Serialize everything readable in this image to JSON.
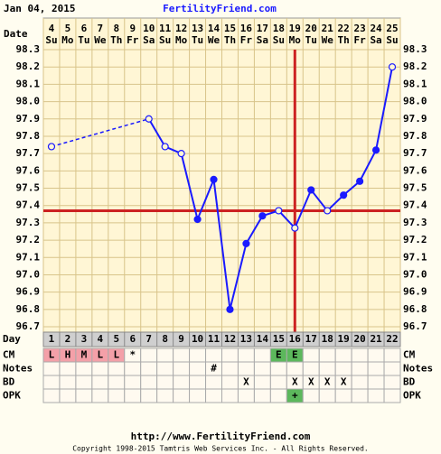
{
  "header": {
    "date": "Jan 04, 2015",
    "site": "FertilityFriend.com"
  },
  "chart_data": {
    "type": "line",
    "date_label": "Date",
    "dates": [
      "4",
      "5",
      "6",
      "7",
      "8",
      "9",
      "10",
      "11",
      "12",
      "13",
      "14",
      "15",
      "16",
      "17",
      "18",
      "19",
      "20",
      "21",
      "22",
      "23",
      "24",
      "25"
    ],
    "weekdays": [
      "Su",
      "Mo",
      "Tu",
      "We",
      "Th",
      "Fr",
      "Sa",
      "Su",
      "Mo",
      "Tu",
      "We",
      "Th",
      "Fr",
      "Sa",
      "Su",
      "Mo",
      "Tu",
      "We",
      "Th",
      "Fr",
      "Sa",
      "Su"
    ],
    "day_label": "Day",
    "categories": [
      "1",
      "2",
      "3",
      "4",
      "5",
      "6",
      "7",
      "8",
      "9",
      "10",
      "11",
      "12",
      "13",
      "14",
      "15",
      "16",
      "17",
      "18",
      "19",
      "20",
      "21",
      "22"
    ],
    "values": [
      97.74,
      null,
      null,
      null,
      null,
      null,
      97.9,
      97.74,
      97.7,
      97.32,
      97.55,
      96.8,
      97.18,
      97.34,
      97.37,
      97.27,
      97.49,
      97.37,
      97.46,
      97.54,
      97.72,
      98.2
    ],
    "marker_open": [
      true,
      false,
      false,
      false,
      false,
      false,
      true,
      true,
      true,
      false,
      false,
      false,
      false,
      false,
      true,
      true,
      false,
      true,
      false,
      false,
      false,
      true
    ],
    "color": "#1a1aff",
    "ylim": [
      96.7,
      98.3
    ],
    "yticks": [
      96.7,
      96.8,
      96.9,
      {
        "value": 97.0,
        "label": "97.0"
      },
      97.1,
      97.2,
      97.3,
      97.4,
      97.5,
      97.6,
      97.7,
      97.8,
      97.9,
      {
        "value": 98.0,
        "label": "98.0"
      },
      98.1,
      98.2,
      98.3
    ],
    "grid": true,
    "coverline": 97.37,
    "ovulation_day": 16,
    "marker_color": "#cc2222",
    "rows": [
      {
        "label": "CM",
        "cells": [
          "L",
          "H",
          "M",
          "L",
          "L",
          "*",
          null,
          null,
          null,
          null,
          null,
          null,
          null,
          null,
          "E",
          "E",
          null,
          null,
          null,
          null,
          null,
          null
        ],
        "colors": [
          "#f4a0a8",
          "#f4a0a8",
          "#f4a0a8",
          "#f4a0a8",
          "#f4a0a8",
          null,
          null,
          null,
          null,
          null,
          null,
          null,
          null,
          null,
          "#5cb85c",
          "#5cb85c",
          null,
          null,
          null,
          null,
          null,
          null
        ]
      },
      {
        "label": "Notes",
        "cells": [
          null,
          null,
          null,
          null,
          null,
          null,
          null,
          null,
          null,
          null,
          "#",
          null,
          null,
          null,
          null,
          null,
          null,
          null,
          null,
          null,
          null,
          null
        ],
        "colors": [
          null,
          null,
          null,
          null,
          null,
          null,
          null,
          null,
          null,
          null,
          null,
          null,
          null,
          null,
          null,
          null,
          null,
          null,
          null,
          null,
          null,
          null
        ]
      },
      {
        "label": "BD",
        "cells": [
          null,
          null,
          null,
          null,
          null,
          null,
          null,
          null,
          null,
          null,
          null,
          null,
          "X",
          null,
          null,
          "X",
          "X",
          "X",
          "X",
          null,
          null,
          null
        ],
        "colors": [
          null,
          null,
          null,
          null,
          null,
          null,
          null,
          null,
          null,
          null,
          null,
          null,
          null,
          null,
          null,
          null,
          null,
          null,
          null,
          null,
          null,
          null
        ]
      },
      {
        "label": "OPK",
        "cells": [
          null,
          null,
          null,
          null,
          null,
          null,
          null,
          null,
          null,
          null,
          null,
          null,
          null,
          null,
          null,
          "+",
          null,
          null,
          null,
          null,
          null,
          null
        ],
        "colors": [
          null,
          null,
          null,
          null,
          null,
          null,
          null,
          null,
          null,
          null,
          null,
          null,
          null,
          null,
          null,
          "#5cb85c",
          null,
          null,
          null,
          null,
          null,
          null
        ]
      }
    ]
  },
  "footer": {
    "url": "http://www.FertilityFriend.com",
    "copyright": "Copyright 1998-2015 Tamtris Web Services Inc. - All Rights Reserved."
  }
}
